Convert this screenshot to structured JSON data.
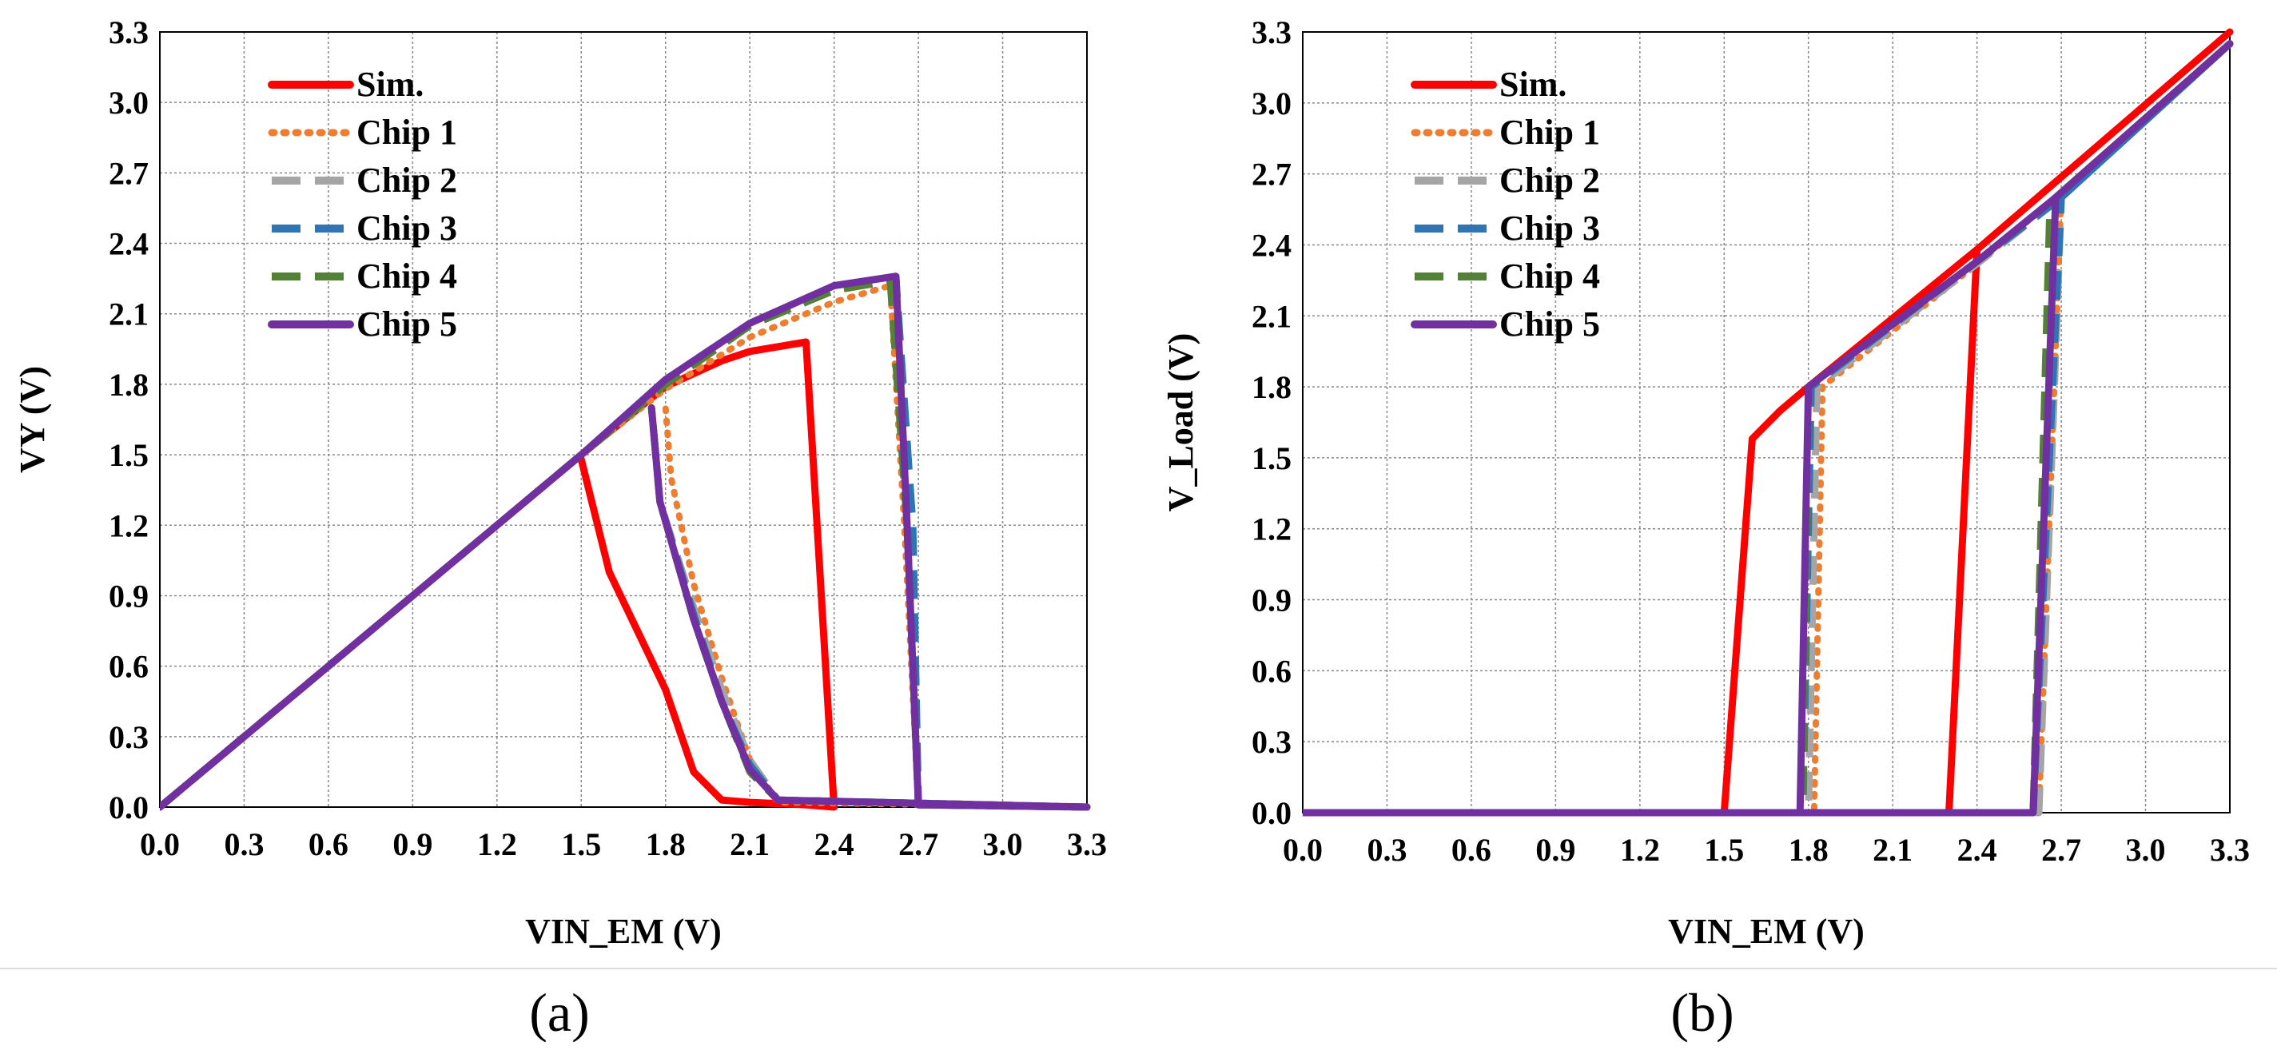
{
  "panels": [
    {
      "caption": "(a)",
      "chart_data": {
        "type": "line",
        "xlabel": "VIN_EM (V)",
        "ylabel": "VY (V)",
        "xlim": [
          0,
          3.3
        ],
        "ylim": [
          0,
          3.3
        ],
        "xticks": [
          "0.0",
          "0.3",
          "0.6",
          "0.9",
          "1.2",
          "1.5",
          "1.8",
          "2.1",
          "2.4",
          "2.7",
          "3.0",
          "3.3"
        ],
        "yticks": [
          "0.0",
          "0.3",
          "0.6",
          "0.9",
          "1.2",
          "1.5",
          "1.8",
          "2.1",
          "2.4",
          "2.7",
          "3.0",
          "3.3"
        ],
        "grid": true,
        "legend_position": "top-left",
        "series": [
          {
            "name": "Sim.",
            "color": "#ff0000",
            "style": "solid",
            "points": [
              [
                0,
                0
              ],
              [
                1.5,
                1.5
              ],
              [
                1.8,
                1.79
              ],
              [
                2.0,
                1.9
              ],
              [
                2.1,
                1.94
              ],
              [
                2.3,
                1.98
              ],
              [
                2.4,
                0
              ],
              [
                2.3,
                0.01
              ],
              [
                2.1,
                0.02
              ],
              [
                2.0,
                0.03
              ],
              [
                1.9,
                0.15
              ],
              [
                1.8,
                0.5
              ],
              [
                1.7,
                0.75
              ],
              [
                1.6,
                1.0
              ],
              [
                1.5,
                1.48
              ]
            ]
          },
          {
            "name": "Chip 1",
            "color": "#ed7d31",
            "style": "dotted",
            "points": [
              [
                0,
                0
              ],
              [
                1.5,
                1.5
              ],
              [
                1.8,
                1.78
              ],
              [
                2.1,
                2.0
              ],
              [
                2.4,
                2.15
              ],
              [
                2.6,
                2.22
              ],
              [
                2.65,
                1.2
              ],
              [
                2.7,
                0.01
              ],
              [
                3.3,
                0.0
              ],
              [
                2.2,
                0.02
              ],
              [
                2.1,
                0.2
              ],
              [
                2.0,
                0.55
              ],
              [
                1.9,
                0.95
              ],
              [
                1.82,
                1.4
              ],
              [
                1.8,
                1.7
              ]
            ]
          },
          {
            "name": "Chip 2",
            "color": "#a5a5a5",
            "style": "dashed",
            "points": [
              [
                0,
                0
              ],
              [
                1.5,
                1.5
              ],
              [
                1.8,
                1.8
              ],
              [
                2.1,
                2.05
              ],
              [
                2.4,
                2.2
              ],
              [
                2.62,
                2.25
              ],
              [
                2.67,
                1.2
              ],
              [
                2.7,
                0.01
              ],
              [
                3.3,
                0.0
              ],
              [
                2.2,
                0.03
              ],
              [
                2.1,
                0.2
              ],
              [
                2.0,
                0.5
              ],
              [
                1.9,
                0.85
              ],
              [
                1.78,
                1.3
              ],
              [
                1.75,
                1.7
              ]
            ]
          },
          {
            "name": "Chip 3",
            "color": "#2e75b6",
            "style": "dashed",
            "points": [
              [
                0,
                0
              ],
              [
                1.5,
                1.5
              ],
              [
                1.8,
                1.8
              ],
              [
                2.1,
                2.05
              ],
              [
                2.4,
                2.2
              ],
              [
                2.62,
                2.25
              ],
              [
                2.68,
                1.2
              ],
              [
                2.7,
                0.01
              ],
              [
                3.3,
                0.0
              ],
              [
                2.2,
                0.03
              ],
              [
                2.1,
                0.18
              ],
              [
                2.0,
                0.45
              ],
              [
                1.9,
                0.82
              ],
              [
                1.78,
                1.3
              ],
              [
                1.75,
                1.7
              ]
            ]
          },
          {
            "name": "Chip 4",
            "color": "#548235",
            "style": "dashed",
            "points": [
              [
                0,
                0
              ],
              [
                1.5,
                1.5
              ],
              [
                1.8,
                1.8
              ],
              [
                2.1,
                2.05
              ],
              [
                2.4,
                2.2
              ],
              [
                2.6,
                2.24
              ],
              [
                2.66,
                1.2
              ],
              [
                2.7,
                0.01
              ],
              [
                3.3,
                0.0
              ],
              [
                2.2,
                0.03
              ],
              [
                2.1,
                0.15
              ],
              [
                2.0,
                0.45
              ],
              [
                1.9,
                0.8
              ],
              [
                1.78,
                1.3
              ],
              [
                1.75,
                1.7
              ]
            ]
          },
          {
            "name": "Chip 5",
            "color": "#7030a0",
            "style": "solid",
            "points": [
              [
                0,
                0
              ],
              [
                1.5,
                1.5
              ],
              [
                1.8,
                1.82
              ],
              [
                2.1,
                2.06
              ],
              [
                2.4,
                2.22
              ],
              [
                2.62,
                2.26
              ],
              [
                2.66,
                1.2
              ],
              [
                2.7,
                0.01
              ],
              [
                3.3,
                0.0
              ],
              [
                2.2,
                0.03
              ],
              [
                2.1,
                0.16
              ],
              [
                2.0,
                0.45
              ],
              [
                1.9,
                0.8
              ],
              [
                1.78,
                1.3
              ],
              [
                1.75,
                1.7
              ]
            ]
          }
        ]
      }
    },
    {
      "caption": "(b)",
      "chart_data": {
        "type": "line",
        "xlabel": "VIN_EM (V)",
        "ylabel": "V_Load (V)",
        "xlim": [
          0,
          3.3
        ],
        "ylim": [
          0,
          3.3
        ],
        "xticks": [
          "0.0",
          "0.3",
          "0.6",
          "0.9",
          "1.2",
          "1.5",
          "1.8",
          "2.1",
          "2.4",
          "2.7",
          "3.0",
          "3.3"
        ],
        "yticks": [
          "0.0",
          "0.3",
          "0.6",
          "0.9",
          "1.2",
          "1.5",
          "1.8",
          "2.1",
          "2.4",
          "2.7",
          "3.0",
          "3.3"
        ],
        "grid": true,
        "legend_position": "top-left",
        "series": [
          {
            "name": "Sim.",
            "color": "#ff0000",
            "style": "solid",
            "points": [
              [
                0,
                0
              ],
              [
                1.5,
                0
              ],
              [
                1.6,
                1.58
              ],
              [
                1.7,
                1.7
              ],
              [
                1.8,
                1.8
              ],
              [
                2.4,
                2.38
              ],
              [
                3.3,
                3.3
              ],
              [
                2.4,
                2.38
              ],
              [
                2.3,
                0
              ],
              [
                1.5,
                0
              ]
            ]
          },
          {
            "name": "Chip 1",
            "color": "#ed7d31",
            "style": "dotted",
            "points": [
              [
                0,
                0
              ],
              [
                1.82,
                0
              ],
              [
                1.85,
                1.8
              ],
              [
                2.4,
                2.32
              ],
              [
                2.7,
                2.62
              ],
              [
                3.3,
                3.25
              ],
              [
                2.7,
                2.62
              ],
              [
                2.62,
                0
              ],
              [
                1.82,
                0
              ]
            ]
          },
          {
            "name": "Chip 2",
            "color": "#a5a5a5",
            "style": "dashed",
            "points": [
              [
                0,
                0
              ],
              [
                1.8,
                0
              ],
              [
                1.83,
                1.8
              ],
              [
                2.4,
                2.32
              ],
              [
                2.7,
                2.6
              ],
              [
                3.3,
                3.25
              ],
              [
                2.7,
                2.6
              ],
              [
                2.62,
                0
              ],
              [
                1.8,
                0
              ]
            ]
          },
          {
            "name": "Chip 3",
            "color": "#2e75b6",
            "style": "dashed",
            "points": [
              [
                0,
                0
              ],
              [
                1.78,
                0
              ],
              [
                1.81,
                1.8
              ],
              [
                2.4,
                2.33
              ],
              [
                2.7,
                2.6
              ],
              [
                3.3,
                3.25
              ],
              [
                2.7,
                2.6
              ],
              [
                2.6,
                0
              ],
              [
                1.78,
                0
              ]
            ]
          },
          {
            "name": "Chip 4",
            "color": "#548235",
            "style": "dashed",
            "points": [
              [
                0,
                0
              ],
              [
                1.78,
                0
              ],
              [
                1.8,
                1.8
              ],
              [
                2.4,
                2.33
              ],
              [
                2.66,
                2.58
              ],
              [
                3.3,
                3.25
              ],
              [
                2.66,
                2.58
              ],
              [
                2.6,
                0
              ],
              [
                1.78,
                0
              ]
            ]
          },
          {
            "name": "Chip 5",
            "color": "#7030a0",
            "style": "solid",
            "points": [
              [
                0,
                0
              ],
              [
                1.77,
                0
              ],
              [
                1.8,
                1.8
              ],
              [
                2.4,
                2.33
              ],
              [
                2.68,
                2.6
              ],
              [
                3.3,
                3.25
              ],
              [
                2.68,
                2.6
              ],
              [
                2.6,
                0
              ],
              [
                1.77,
                0
              ]
            ]
          }
        ]
      }
    }
  ]
}
